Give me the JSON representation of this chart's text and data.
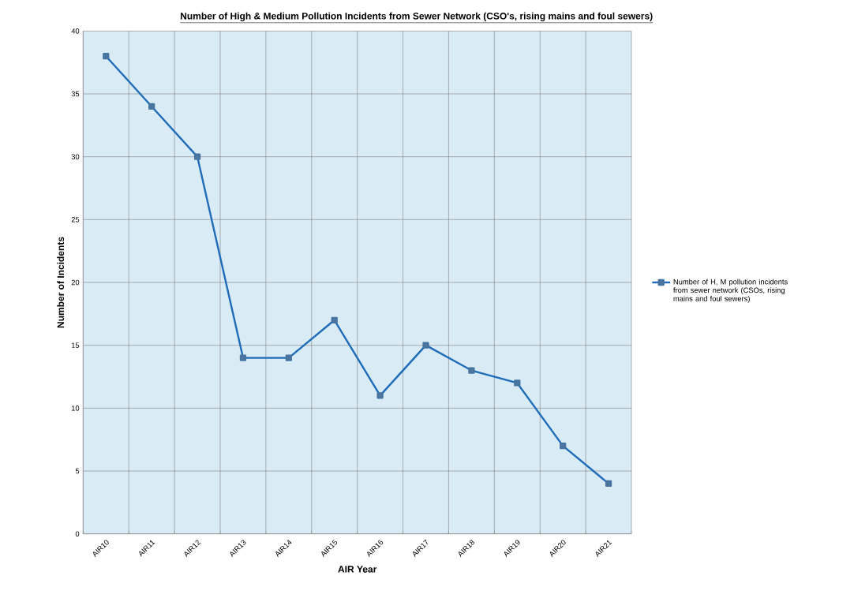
{
  "chart_data": {
    "type": "line",
    "title": "Number of High & Medium Pollution Incidents from Sewer Network (CSO's, rising mains and foul sewers)",
    "xlabel": "AIR Year",
    "ylabel": "Number of Incidents",
    "categories": [
      "AIR10",
      "AIR11",
      "AIR12",
      "AIR13",
      "AIR14",
      "AIR15",
      "AIR16",
      "AIR17",
      "AIR18",
      "AIR19",
      "AIR20",
      "AIR21"
    ],
    "series": [
      {
        "name": "Number of H, M pollution incidents from sewer network (CSOs, rising mains and foul sewers)",
        "color": "#1f6cb8",
        "values": [
          38,
          34,
          30,
          14,
          14,
          17,
          11,
          15,
          13,
          12,
          7,
          4
        ]
      }
    ],
    "ylim": [
      0,
      40
    ],
    "yticks": [
      0,
      5,
      10,
      15,
      20,
      25,
      30,
      35,
      40
    ],
    "grid": true,
    "legend": "right",
    "marker": "square",
    "line_style": "solid"
  }
}
